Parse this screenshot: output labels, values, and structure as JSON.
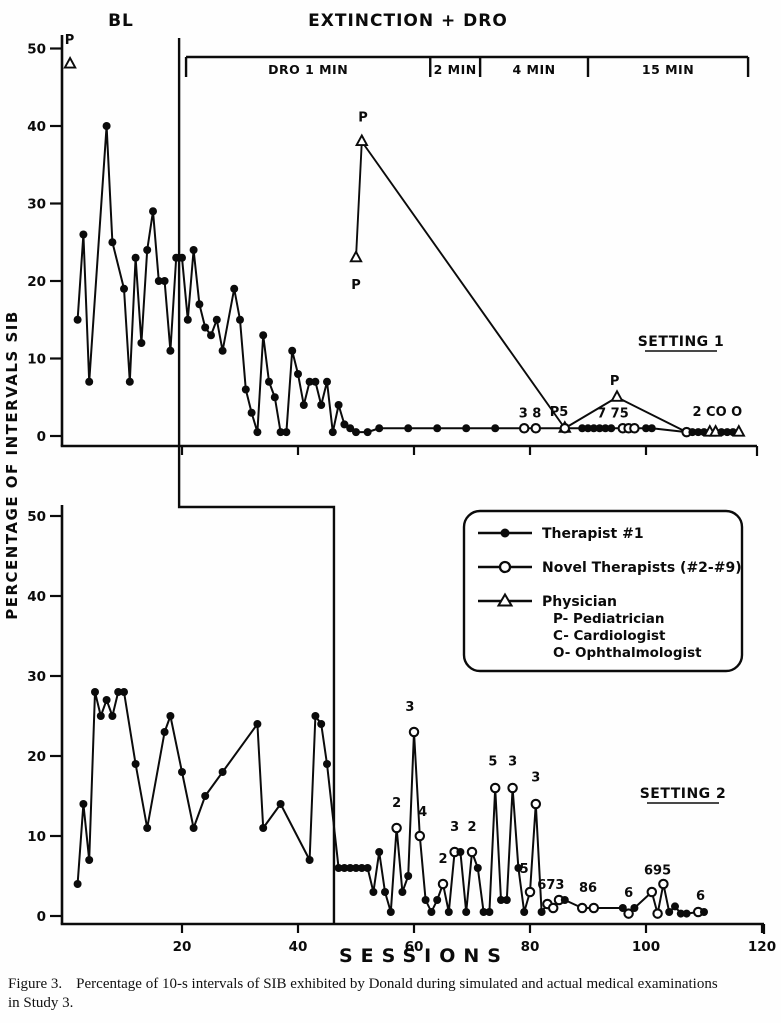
{
  "figure_caption": {
    "prefix": "Figure 3.",
    "line1": "Percentage of 10-s intervals of SIB exhibited by Donald during simulated and actual medical examinations",
    "line2": "in Study 3."
  },
  "chart_data": {
    "type": "line",
    "xlabel": "SESSIONS",
    "ylabel": "PERCENTAGE OF INTERVALS SIB",
    "xlim": [
      0,
      121
    ],
    "ylim": [
      0,
      52
    ],
    "x_ticks": [
      20,
      40,
      60,
      80,
      100,
      120
    ],
    "y_ticks": [
      0,
      10,
      20,
      30,
      40,
      50
    ],
    "grid": false,
    "legend_position": "middle-right",
    "condition_labels": {
      "baseline": "BL",
      "treatment": "EXTINCTION + DRO"
    },
    "dro_schedule_bracket": {
      "segments": [
        {
          "label": "DRO 1 MIN",
          "from_session": 20.7,
          "to_session": 62.8
        },
        {
          "label": "2 MIN",
          "from_session": 62.8,
          "to_session": 71.4
        },
        {
          "label": "4 MIN",
          "from_session": 71.4,
          "to_session": 90
        },
        {
          "label": "15 MIN",
          "from_session": 90,
          "to_session": 117.6
        }
      ]
    },
    "legend": {
      "items": [
        {
          "marker": "filled-circle",
          "label": "Therapist #1"
        },
        {
          "marker": "open-circle",
          "label": "Novel Therapists (#2-#9)"
        },
        {
          "marker": "open-triangle",
          "label": "Physician",
          "sub": [
            "P-  Pediatrician",
            "C-  Cardiologist",
            "O- Ophthalmologist"
          ]
        }
      ]
    },
    "marker_key": {
      "f": "Therapist #1 filled circle",
      "o": "Novel therapist open circle",
      "t": "Physician open triangle"
    },
    "panels": [
      {
        "name": "SETTING 1",
        "phase_change_session": 19.5,
        "main_line": [
          [
            2,
            15,
            "f"
          ],
          [
            3,
            26,
            "f"
          ],
          [
            4,
            7,
            "f"
          ],
          [
            7,
            40,
            "f"
          ],
          [
            8,
            25,
            "f"
          ],
          [
            10,
            19,
            "f"
          ],
          [
            11,
            7,
            "f"
          ],
          [
            12,
            23,
            "f"
          ],
          [
            13,
            12,
            "f"
          ],
          [
            14,
            24,
            "f"
          ],
          [
            15,
            29,
            "f"
          ],
          [
            16,
            20,
            "f"
          ],
          [
            17,
            20,
            "f"
          ],
          [
            18,
            11,
            "f"
          ],
          [
            19,
            23,
            "f"
          ],
          [
            20,
            23,
            "f"
          ],
          [
            21,
            15,
            "f"
          ],
          [
            22,
            24,
            "f"
          ],
          [
            23,
            17,
            "f"
          ],
          [
            24,
            14,
            "f"
          ],
          [
            25,
            13,
            "f"
          ],
          [
            26,
            15,
            "f"
          ],
          [
            27,
            11,
            "f"
          ],
          [
            29,
            19,
            "f"
          ],
          [
            30,
            15,
            "f"
          ],
          [
            31,
            6,
            "f"
          ],
          [
            32,
            3,
            "f"
          ],
          [
            33,
            0.5,
            "f"
          ],
          [
            34,
            13,
            "f"
          ],
          [
            35,
            7,
            "f"
          ],
          [
            36,
            5,
            "f"
          ],
          [
            37,
            0.5,
            "f"
          ],
          [
            38,
            0.5,
            "f"
          ],
          [
            39,
            11,
            "f"
          ],
          [
            40,
            8,
            "f"
          ],
          [
            41,
            4,
            "f"
          ],
          [
            42,
            7,
            "f"
          ],
          [
            43,
            7,
            "f"
          ],
          [
            44,
            4,
            "f"
          ],
          [
            45,
            7,
            "f"
          ],
          [
            46,
            0.5,
            "f"
          ],
          [
            47,
            4,
            "f"
          ],
          [
            48,
            1.5,
            "f"
          ],
          [
            49,
            1,
            "f"
          ],
          [
            50,
            0.5,
            "f"
          ],
          [
            52,
            0.5,
            "f"
          ],
          [
            54,
            1,
            "f"
          ],
          [
            59,
            1,
            "f"
          ],
          [
            64,
            1,
            "f"
          ],
          [
            69,
            1,
            "f"
          ],
          [
            74,
            1,
            "f"
          ],
          [
            79,
            1,
            "o"
          ],
          [
            81,
            1,
            "o"
          ],
          [
            86,
            1,
            "o"
          ],
          [
            89,
            1,
            "f"
          ],
          [
            90,
            1,
            "f"
          ],
          [
            91,
            1,
            "f"
          ],
          [
            92,
            1,
            "f"
          ],
          [
            93,
            1,
            "f"
          ],
          [
            94,
            1,
            "f"
          ],
          [
            96,
            1,
            "o"
          ],
          [
            97,
            1,
            "o"
          ],
          [
            98,
            1,
            "o"
          ],
          [
            100,
            1,
            "f"
          ],
          [
            101,
            1,
            "f"
          ],
          [
            107,
            0.5,
            "o"
          ],
          [
            108,
            0.5,
            "f"
          ],
          [
            109,
            0.5,
            "f"
          ],
          [
            110,
            0.5,
            "f"
          ],
          [
            111,
            0.5,
            "t"
          ],
          [
            112,
            0.5,
            "t"
          ],
          [
            113,
            0.5,
            "f"
          ],
          [
            114,
            0.5,
            "f"
          ],
          [
            115,
            0.5,
            "f"
          ],
          [
            116,
            0.5,
            "t"
          ]
        ],
        "physician_isolated": [
          [
            0.7,
            48
          ]
        ],
        "physician_line": [
          [
            50,
            23
          ],
          [
            51,
            38
          ],
          [
            86,
            1
          ],
          [
            95,
            5
          ],
          [
            107,
            0.5
          ]
        ],
        "annotations": [
          {
            "text": "P",
            "s": 0.6,
            "v": 50.6
          },
          {
            "text": "P",
            "s": 50,
            "v": 19.0
          },
          {
            "text": "P",
            "s": 51.2,
            "v": 40.6
          },
          {
            "text": "3 8",
            "s": 80,
            "v": 2.4
          },
          {
            "text": "P5",
            "s": 85,
            "v": 2.6
          },
          {
            "text": "7 75",
            "s": 94.3,
            "v": 2.4
          },
          {
            "text": "P",
            "s": 94.6,
            "v": 6.6
          },
          {
            "text": "2 CO O",
            "s": 112.3,
            "v": 2.6
          }
        ]
      },
      {
        "name": "SETTING 2",
        "phase_change_session": 46.2,
        "main_line": [
          [
            2,
            4,
            "f"
          ],
          [
            3,
            14,
            "f"
          ],
          [
            4,
            7,
            "f"
          ],
          [
            5,
            28,
            "f"
          ],
          [
            6,
            25,
            "f"
          ],
          [
            7,
            27,
            "f"
          ],
          [
            8,
            25,
            "f"
          ],
          [
            9,
            28,
            "f"
          ],
          [
            10,
            28,
            "f"
          ],
          [
            12,
            19,
            "f"
          ],
          [
            14,
            11,
            "f"
          ],
          [
            17,
            23,
            "f"
          ],
          [
            18,
            25,
            "f"
          ],
          [
            20,
            18,
            "f"
          ],
          [
            22,
            11,
            "f"
          ],
          [
            24,
            15,
            "f"
          ],
          [
            27,
            18,
            "f"
          ],
          [
            33,
            24,
            "f"
          ],
          [
            34,
            11,
            "f"
          ],
          [
            37,
            14,
            "f"
          ],
          [
            42,
            7,
            "f"
          ],
          [
            43,
            25,
            "f"
          ],
          [
            44,
            24,
            "f"
          ],
          [
            45,
            19,
            "f"
          ],
          [
            47,
            6,
            "f"
          ],
          [
            48,
            6,
            "f"
          ],
          [
            49,
            6,
            "f"
          ],
          [
            50,
            6,
            "f"
          ],
          [
            51,
            6,
            "f"
          ],
          [
            52,
            6,
            "f"
          ],
          [
            53,
            3,
            "f"
          ],
          [
            54,
            8,
            "f"
          ],
          [
            55,
            3,
            "f"
          ],
          [
            56,
            0.5,
            "f"
          ],
          [
            57,
            11,
            "o"
          ],
          [
            58,
            3,
            "f"
          ],
          [
            59,
            5,
            "f"
          ],
          [
            60,
            23,
            "o"
          ],
          [
            61,
            10,
            "o"
          ],
          [
            62,
            2,
            "f"
          ],
          [
            63,
            0.5,
            "f"
          ],
          [
            64,
            2,
            "f"
          ],
          [
            65,
            4,
            "o"
          ],
          [
            66,
            0.5,
            "f"
          ],
          [
            67,
            8,
            "o"
          ],
          [
            68,
            8,
            "f"
          ],
          [
            69,
            0.5,
            "f"
          ],
          [
            70,
            8,
            "o"
          ],
          [
            71,
            6,
            "f"
          ],
          [
            72,
            0.5,
            "f"
          ],
          [
            73,
            0.5,
            "f"
          ],
          [
            74,
            16,
            "o"
          ],
          [
            75,
            2,
            "f"
          ],
          [
            76,
            2,
            "f"
          ],
          [
            77,
            16,
            "o"
          ],
          [
            78,
            6,
            "f"
          ],
          [
            79,
            0.5,
            "f"
          ],
          [
            80,
            3,
            "o"
          ],
          [
            81,
            14,
            "o"
          ],
          [
            82,
            0.5,
            "f"
          ],
          [
            83,
            1.5,
            "o"
          ],
          [
            84,
            1,
            "o"
          ],
          [
            85,
            2,
            "o"
          ],
          [
            86,
            2,
            "f"
          ],
          [
            89,
            1,
            "o"
          ],
          [
            91,
            1,
            "o"
          ],
          [
            96,
            1,
            "f"
          ],
          [
            97,
            0.3,
            "o"
          ],
          [
            98,
            1,
            "f"
          ],
          [
            101,
            3,
            "o"
          ],
          [
            102,
            0.3,
            "o"
          ],
          [
            103,
            4,
            "o"
          ],
          [
            104,
            0.5,
            "f"
          ],
          [
            105,
            1.2,
            "f"
          ],
          [
            106,
            0.3,
            "f"
          ],
          [
            107,
            0.3,
            "f"
          ],
          [
            109,
            0.5,
            "o"
          ],
          [
            110,
            0.5,
            "f"
          ]
        ],
        "physician_isolated": [],
        "physician_line": [],
        "annotations": [
          {
            "text": "2",
            "s": 57,
            "v": 13.6
          },
          {
            "text": "3",
            "s": 59.3,
            "v": 25.6
          },
          {
            "text": "4",
            "s": 61.5,
            "v": 12.5
          },
          {
            "text": "2",
            "s": 65,
            "v": 6.6
          },
          {
            "text": "3",
            "s": 67,
            "v": 10.6
          },
          {
            "text": "2",
            "s": 70,
            "v": 10.6
          },
          {
            "text": "5",
            "s": 73.6,
            "v": 18.8
          },
          {
            "text": "3",
            "s": 77,
            "v": 18.8
          },
          {
            "text": "5",
            "s": 79,
            "v": 5.4
          },
          {
            "text": "3",
            "s": 81,
            "v": 16.8
          },
          {
            "text": "673",
            "s": 83.6,
            "v": 3.4
          },
          {
            "text": "86",
            "s": 90,
            "v": 3.0
          },
          {
            "text": "6",
            "s": 97,
            "v": 2.4
          },
          {
            "text": "695",
            "s": 102,
            "v": 5.2
          },
          {
            "text": "6",
            "s": 109.4,
            "v": 2.0
          }
        ]
      }
    ]
  }
}
